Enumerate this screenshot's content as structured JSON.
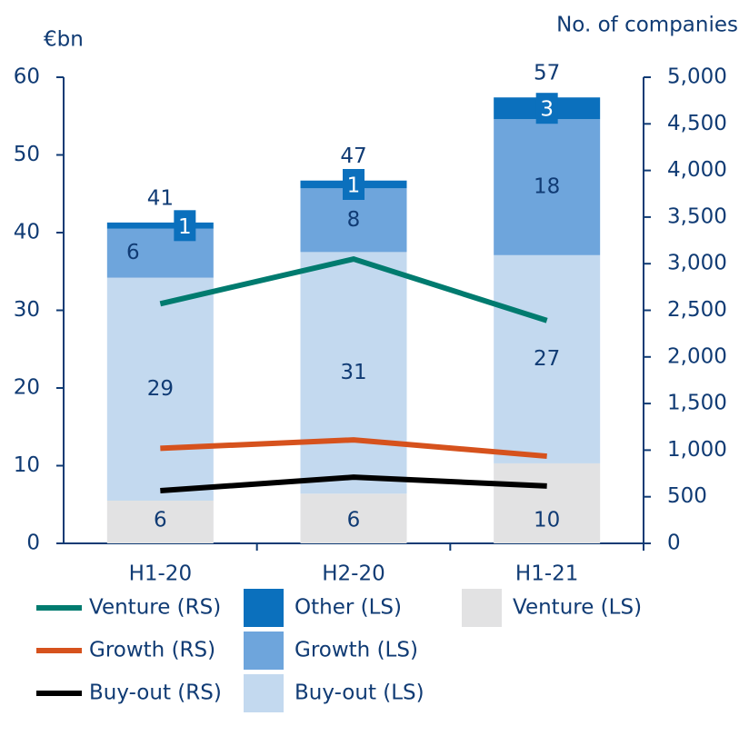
{
  "chart_data": {
    "type": "bar",
    "y_label": "€bn",
    "y2_label": "No. of companies",
    "categories": [
      "H1-20",
      "H2-20",
      "H1-21"
    ],
    "ylim": [
      0,
      60
    ],
    "yticks": [
      0,
      10,
      20,
      30,
      40,
      50,
      60
    ],
    "y2lim": [
      0,
      5000
    ],
    "y2ticks": [
      0,
      500,
      {
        "value": 1000,
        "label": "1,000"
      },
      {
        "value": 1500,
        "label": "1,500"
      },
      {
        "value": 2000,
        "label": "2,000"
      },
      {
        "value": 2500,
        "label": "2,500"
      },
      {
        "value": 3000,
        "label": "3,000"
      },
      {
        "value": 3500,
        "label": "3,500"
      },
      {
        "value": 4000,
        "label": "4,000"
      },
      {
        "value": 4500,
        "label": "4,500"
      },
      {
        "value": 5000,
        "label": "5,000"
      }
    ],
    "totals": [
      41,
      47,
      57
    ],
    "series": [
      {
        "name": "Venture (LS)",
        "type": "bar",
        "color": "#e2e2e3",
        "values": [
          5.5,
          6.4,
          10.3
        ],
        "value_labels": [
          "6",
          "6",
          "10"
        ]
      },
      {
        "name": "Buy-out (LS)",
        "type": "bar",
        "color": "#c3d9ef",
        "values": [
          28.7,
          31.1,
          26.8
        ],
        "value_labels": [
          "29",
          "31",
          "27"
        ]
      },
      {
        "name": "Growth (LS)",
        "type": "bar",
        "color": "#6ea5dc",
        "values": [
          6.3,
          8.2,
          17.5
        ],
        "value_labels": [
          "6",
          "8",
          "18"
        ]
      },
      {
        "name": "Other (LS)",
        "type": "bar",
        "color": "#0b70bd",
        "values": [
          0.8,
          1.0,
          2.8
        ],
        "value_labels": [
          "1",
          "1",
          "3"
        ]
      },
      {
        "name": "Venture (RS)",
        "type": "line",
        "axis": "y2",
        "color": "#007b6f",
        "values": [
          2570,
          3050,
          2390
        ]
      },
      {
        "name": "Growth (RS)",
        "type": "line",
        "axis": "y2",
        "color": "#d6521d",
        "values": [
          1020,
          1110,
          935
        ]
      },
      {
        "name": "Buy-out (RS)",
        "type": "line",
        "axis": "y2",
        "color": "#000000",
        "values": [
          565,
          710,
          615
        ]
      }
    ]
  }
}
